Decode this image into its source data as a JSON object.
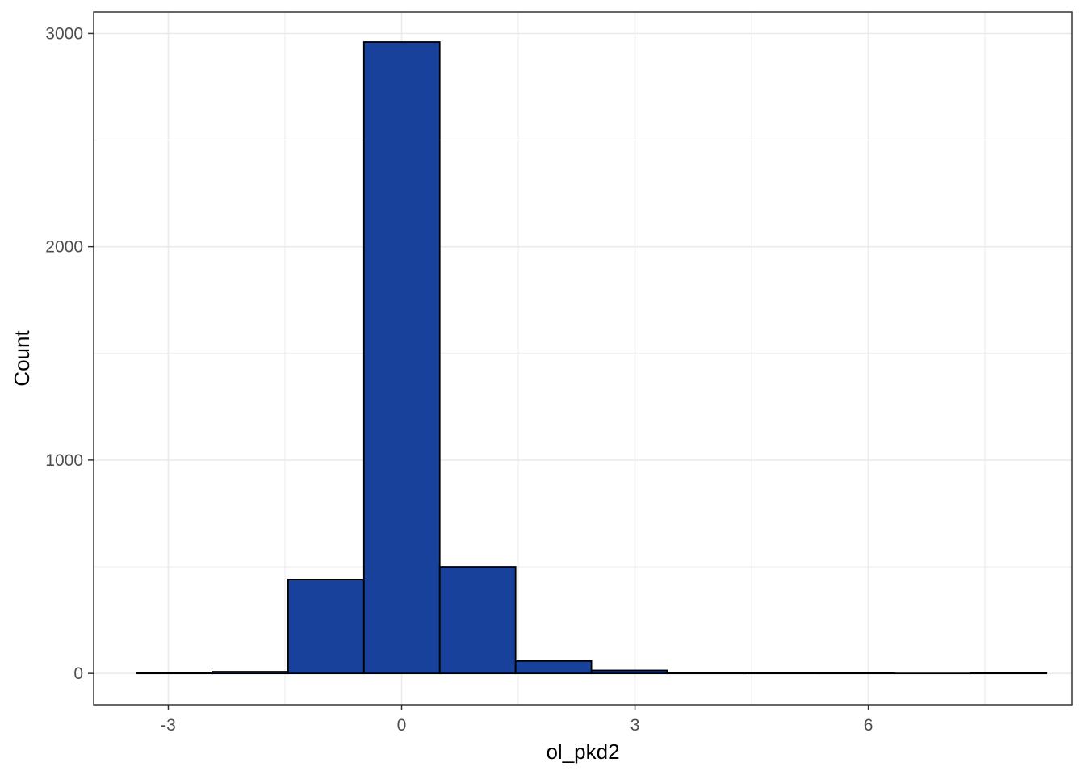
{
  "chart_data": {
    "type": "bar",
    "subtype": "histogram",
    "title": "",
    "xlabel": "ol_pkd2",
    "ylabel": "Count",
    "xlim": [
      -3.96,
      8.62
    ],
    "ylim": [
      -147,
      3100
    ],
    "x_ticks": [
      -3,
      0,
      3,
      6
    ],
    "y_ticks": [
      0,
      1000,
      2000,
      3000
    ],
    "bin_width": 0.975,
    "bins": [
      {
        "start": -3.41,
        "end": -2.435,
        "count": 1
      },
      {
        "start": -2.435,
        "end": -1.46,
        "count": 8
      },
      {
        "start": -1.46,
        "end": -0.485,
        "count": 440
      },
      {
        "start": -0.485,
        "end": 0.49,
        "count": 2960
      },
      {
        "start": 0.49,
        "end": 1.465,
        "count": 500
      },
      {
        "start": 1.465,
        "end": 2.44,
        "count": 58
      },
      {
        "start": 2.44,
        "end": 3.415,
        "count": 14
      },
      {
        "start": 3.415,
        "end": 4.39,
        "count": 2
      },
      {
        "start": 4.39,
        "end": 5.365,
        "count": 1
      },
      {
        "start": 5.365,
        "end": 6.34,
        "count": 1
      },
      {
        "start": 6.34,
        "end": 7.315,
        "count": 0
      },
      {
        "start": 7.315,
        "end": 8.29,
        "count": 1
      }
    ],
    "grid": true,
    "legend": "none",
    "colors": {
      "fill": "#17419A",
      "outline": "#000000",
      "grid": "#EBEBEB",
      "panel_border": "#333333"
    }
  }
}
